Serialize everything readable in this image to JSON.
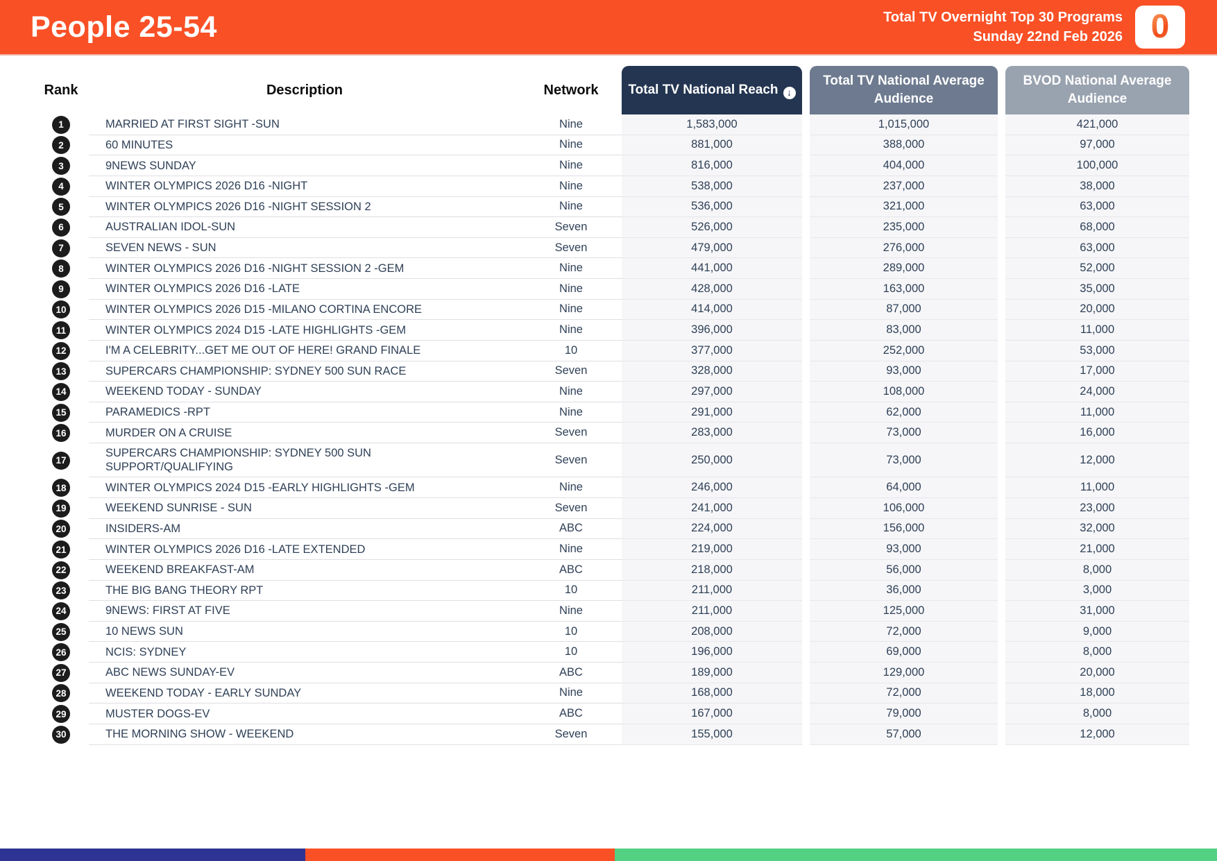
{
  "header": {
    "title": "People 25-54",
    "report_line1": "Total TV Overnight Top 30 Programs",
    "report_line2": "Sunday 22nd Feb 2026",
    "logo_glyph": "0",
    "bar_color": "#F95026"
  },
  "table": {
    "columns": {
      "rank": "Rank",
      "description": "Description",
      "network": "Network",
      "reach": "Total TV National Reach",
      "avg_audience": "Total TV National Average Audience",
      "bvod": "BVOD National Average Audience"
    },
    "sort_icon_glyph": "↓",
    "header_colors": {
      "reach": "#233550",
      "avg_audience": "#6D7A8F",
      "bvod": "#99A2AF"
    },
    "rows": [
      {
        "rank": "1",
        "description": "MARRIED AT FIRST SIGHT -SUN",
        "network": "Nine",
        "reach": "1,583,000",
        "avg_audience": "1,015,000",
        "bvod": "421,000"
      },
      {
        "rank": "2",
        "description": "60 MINUTES",
        "network": "Nine",
        "reach": "881,000",
        "avg_audience": "388,000",
        "bvod": "97,000"
      },
      {
        "rank": "3",
        "description": "9NEWS SUNDAY",
        "network": "Nine",
        "reach": "816,000",
        "avg_audience": "404,000",
        "bvod": "100,000"
      },
      {
        "rank": "4",
        "description": "WINTER OLYMPICS 2026 D16 -NIGHT",
        "network": "Nine",
        "reach": "538,000",
        "avg_audience": "237,000",
        "bvod": "38,000"
      },
      {
        "rank": "5",
        "description": "WINTER OLYMPICS 2026 D16 -NIGHT SESSION 2",
        "network": "Nine",
        "reach": "536,000",
        "avg_audience": "321,000",
        "bvod": "63,000"
      },
      {
        "rank": "6",
        "description": "AUSTRALIAN IDOL-SUN",
        "network": "Seven",
        "reach": "526,000",
        "avg_audience": "235,000",
        "bvod": "68,000"
      },
      {
        "rank": "7",
        "description": "SEVEN NEWS - SUN",
        "network": "Seven",
        "reach": "479,000",
        "avg_audience": "276,000",
        "bvod": "63,000"
      },
      {
        "rank": "8",
        "description": "WINTER OLYMPICS 2026 D16 -NIGHT SESSION 2 -GEM",
        "network": "Nine",
        "reach": "441,000",
        "avg_audience": "289,000",
        "bvod": "52,000"
      },
      {
        "rank": "9",
        "description": "WINTER OLYMPICS 2026 D16 -LATE",
        "network": "Nine",
        "reach": "428,000",
        "avg_audience": "163,000",
        "bvod": "35,000"
      },
      {
        "rank": "10",
        "description": "WINTER OLYMPICS 2026 D15 -MILANO CORTINA ENCORE",
        "network": "Nine",
        "reach": "414,000",
        "avg_audience": "87,000",
        "bvod": "20,000"
      },
      {
        "rank": "11",
        "description": "WINTER OLYMPICS 2024 D15 -LATE HIGHLIGHTS -GEM",
        "network": "Nine",
        "reach": "396,000",
        "avg_audience": "83,000",
        "bvod": "11,000"
      },
      {
        "rank": "12",
        "description": "I'M A CELEBRITY...GET ME OUT OF HERE! GRAND FINALE",
        "network": "10",
        "reach": "377,000",
        "avg_audience": "252,000",
        "bvod": "53,000"
      },
      {
        "rank": "13",
        "description": "SUPERCARS CHAMPIONSHIP: SYDNEY 500 SUN RACE",
        "network": "Seven",
        "reach": "328,000",
        "avg_audience": "93,000",
        "bvod": "17,000"
      },
      {
        "rank": "14",
        "description": "WEEKEND TODAY - SUNDAY",
        "network": "Nine",
        "reach": "297,000",
        "avg_audience": "108,000",
        "bvod": "24,000"
      },
      {
        "rank": "15",
        "description": "PARAMEDICS -RPT",
        "network": "Nine",
        "reach": "291,000",
        "avg_audience": "62,000",
        "bvod": "11,000"
      },
      {
        "rank": "16",
        "description": "MURDER ON A CRUISE",
        "network": "Seven",
        "reach": "283,000",
        "avg_audience": "73,000",
        "bvod": "16,000"
      },
      {
        "rank": "17",
        "description": "SUPERCARS CHAMPIONSHIP: SYDNEY 500 SUN\nSUPPORT/QUALIFYING",
        "network": "Seven",
        "reach": "250,000",
        "avg_audience": "73,000",
        "bvod": "12,000"
      },
      {
        "rank": "18",
        "description": "WINTER OLYMPICS 2024 D15 -EARLY HIGHLIGHTS -GEM",
        "network": "Nine",
        "reach": "246,000",
        "avg_audience": "64,000",
        "bvod": "11,000"
      },
      {
        "rank": "19",
        "description": "WEEKEND SUNRISE - SUN",
        "network": "Seven",
        "reach": "241,000",
        "avg_audience": "106,000",
        "bvod": "23,000"
      },
      {
        "rank": "20",
        "description": "INSIDERS-AM",
        "network": "ABC",
        "reach": "224,000",
        "avg_audience": "156,000",
        "bvod": "32,000"
      },
      {
        "rank": "21",
        "description": "WINTER OLYMPICS 2026 D16 -LATE EXTENDED",
        "network": "Nine",
        "reach": "219,000",
        "avg_audience": "93,000",
        "bvod": "21,000"
      },
      {
        "rank": "22",
        "description": "WEEKEND BREAKFAST-AM",
        "network": "ABC",
        "reach": "218,000",
        "avg_audience": "56,000",
        "bvod": "8,000"
      },
      {
        "rank": "23",
        "description": "THE BIG BANG THEORY RPT",
        "network": "10",
        "reach": "211,000",
        "avg_audience": "36,000",
        "bvod": "3,000"
      },
      {
        "rank": "24",
        "description": "9NEWS: FIRST AT FIVE",
        "network": "Nine",
        "reach": "211,000",
        "avg_audience": "125,000",
        "bvod": "31,000"
      },
      {
        "rank": "25",
        "description": "10 NEWS SUN",
        "network": "10",
        "reach": "208,000",
        "avg_audience": "72,000",
        "bvod": "9,000"
      },
      {
        "rank": "26",
        "description": "NCIS: SYDNEY",
        "network": "10",
        "reach": "196,000",
        "avg_audience": "69,000",
        "bvod": "8,000"
      },
      {
        "rank": "27",
        "description": "ABC NEWS SUNDAY-EV",
        "network": "ABC",
        "reach": "189,000",
        "avg_audience": "129,000",
        "bvod": "20,000"
      },
      {
        "rank": "28",
        "description": "WEEKEND TODAY - EARLY SUNDAY",
        "network": "Nine",
        "reach": "168,000",
        "avg_audience": "72,000",
        "bvod": "18,000"
      },
      {
        "rank": "29",
        "description": "MUSTER DOGS-EV",
        "network": "ABC",
        "reach": "167,000",
        "avg_audience": "79,000",
        "bvod": "8,000"
      },
      {
        "rank": "30",
        "description": "THE MORNING SHOW - WEEKEND",
        "network": "Seven",
        "reach": "155,000",
        "avg_audience": "57,000",
        "bvod": "12,000"
      }
    ]
  },
  "footer": {
    "segments": [
      {
        "name": "blue",
        "color": "#2E3493",
        "width_pct": 25.1
      },
      {
        "name": "orange",
        "color": "#F95026",
        "width_pct": 25.4
      },
      {
        "name": "green",
        "color": "#52D183",
        "width_pct": 49.5
      }
    ]
  }
}
